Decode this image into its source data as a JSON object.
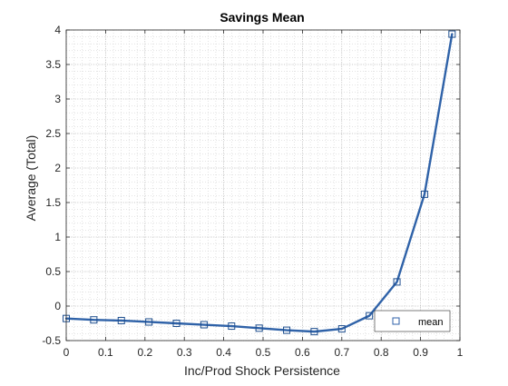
{
  "chart_data": {
    "type": "line",
    "title": "Savings Mean",
    "xlabel": "Inc/Prod Shock Persistence",
    "ylabel": "Average (Total)",
    "xlim": [
      0,
      1
    ],
    "ylim": [
      -0.5,
      4
    ],
    "xticks": [
      0,
      0.1,
      0.2,
      0.3,
      0.4,
      0.5,
      0.6,
      0.7,
      0.8,
      0.9,
      1
    ],
    "xtick_labels": [
      "0",
      "0.1",
      "0.2",
      "0.3",
      "0.4",
      "0.5",
      "0.6",
      "0.7",
      "0.8",
      "0.9",
      "1"
    ],
    "yticks": [
      -0.5,
      0,
      0.5,
      1,
      1.5,
      2,
      2.5,
      3,
      3.5,
      4
    ],
    "ytick_labels": [
      "-0.5",
      "0",
      "0.5",
      "1",
      "1.5",
      "2",
      "2.5",
      "3",
      "3.5",
      "4"
    ],
    "grid": true,
    "minor_grid": true,
    "legend_position": "bottom-right",
    "series": [
      {
        "name": "mean",
        "color": "#2f62a8",
        "marker": "square",
        "x": [
          0,
          0.07,
          0.14,
          0.21,
          0.28,
          0.35,
          0.42,
          0.49,
          0.56,
          0.63,
          0.7,
          0.77,
          0.84,
          0.91,
          0.98
        ],
        "y": [
          -0.18,
          -0.2,
          -0.21,
          -0.23,
          -0.25,
          -0.27,
          -0.29,
          -0.32,
          -0.35,
          -0.37,
          -0.33,
          -0.14,
          0.35,
          1.62,
          3.94
        ]
      }
    ]
  }
}
